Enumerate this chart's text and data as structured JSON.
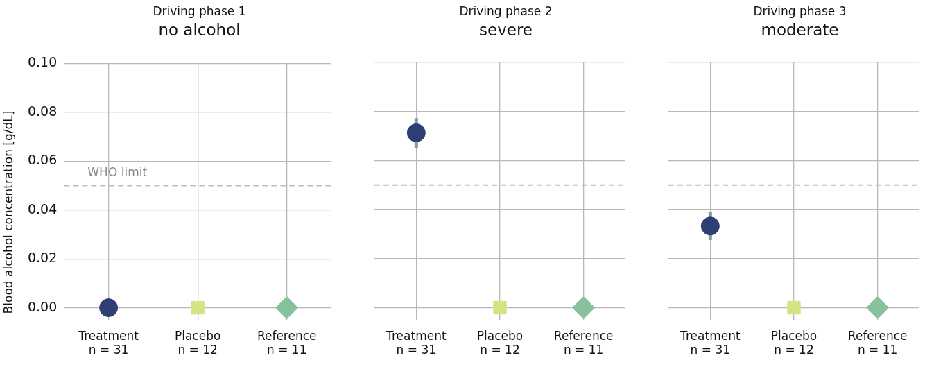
{
  "chart_data": [
    {
      "type": "scatter",
      "subtitle": "Driving phase 1",
      "title": "no alcohol",
      "ylabel": "Blood alcohol concentration [g/dL]",
      "categories": [
        "Treatment\nn = 31",
        "Placebo\nn = 12",
        "Reference\nn = 11"
      ],
      "ylim": [
        -0.005,
        0.1
      ],
      "yticks": [
        {
          "value": 0,
          "label": "0.00"
        },
        {
          "value": 0.02,
          "label": "0.02"
        },
        {
          "value": 0.04,
          "label": "0.04"
        },
        {
          "value": 0.06,
          "label": "0.06"
        },
        {
          "value": 0.08,
          "label": "0.08"
        },
        {
          "value": 0.1,
          "label": "0.10"
        }
      ],
      "grid": true,
      "legend": false,
      "series": [
        {
          "x": [
            "Treatment\nn = 31"
          ],
          "values": [
            0
          ],
          "color": "#2e3f73",
          "marker": "circle"
        },
        {
          "x": [
            "Placebo\nn = 12"
          ],
          "values": [
            0
          ],
          "color": "#d4e384",
          "marker": "square"
        },
        {
          "x": [
            "Reference\nn = 11"
          ],
          "values": [
            0
          ],
          "color": "#88c29c",
          "marker": "diamond"
        }
      ],
      "ref_lines": [
        {
          "axis": "y",
          "value": 0.05,
          "label": "WHO limit",
          "color": "#bdbdbd",
          "line_style": "dashed"
        }
      ]
    },
    {
      "type": "scatter",
      "subtitle": "Driving phase 2",
      "title": "severe",
      "categories": [
        "Treatment\nn = 31",
        "Placebo\nn = 12",
        "Reference\nn = 11"
      ],
      "ylim": [
        -0.005,
        0.1
      ],
      "yticks": [
        0,
        0.02,
        0.04,
        0.06,
        0.08,
        0.1
      ],
      "grid": true,
      "legend": false,
      "tick_labels": "x",
      "series": [
        {
          "x": [
            "Treatment\nn = 31"
          ],
          "values": [
            0.0713
          ],
          "errors": [
            [
              0.0652,
              0.0773
            ]
          ],
          "color": "#2e3f73",
          "marker": "circle"
        },
        {
          "x": [
            "Placebo\nn = 12"
          ],
          "values": [
            0
          ],
          "color": "#d4e384",
          "marker": "square"
        },
        {
          "x": [
            "Reference\nn = 11"
          ],
          "values": [
            0
          ],
          "color": "#88c29c",
          "marker": "diamond"
        }
      ],
      "ref_lines": [
        {
          "axis": "y",
          "value": 0.05,
          "color": "#bdbdbd",
          "line_style": "dashed"
        }
      ]
    },
    {
      "type": "scatter",
      "subtitle": "Driving phase 3",
      "title": "moderate",
      "categories": [
        "Treatment\nn = 31",
        "Placebo\nn = 12",
        "Reference\nn = 11"
      ],
      "ylim": [
        -0.005,
        0.1
      ],
      "yticks": [
        0,
        0.02,
        0.04,
        0.06,
        0.08,
        0.1
      ],
      "grid": true,
      "legend": false,
      "tick_labels": "x",
      "series": [
        {
          "x": [
            "Treatment\nn = 31"
          ],
          "values": [
            0.0333
          ],
          "errors": [
            [
              0.0276,
              0.0391
            ]
          ],
          "color": "#2e3f73",
          "marker": "circle"
        },
        {
          "x": [
            "Placebo\nn = 12"
          ],
          "values": [
            0
          ],
          "color": "#d4e384",
          "marker": "square"
        },
        {
          "x": [
            "Reference\nn = 11"
          ],
          "values": [
            0
          ],
          "color": "#88c29c",
          "marker": "diamond"
        }
      ],
      "ref_lines": [
        {
          "axis": "y",
          "value": 0.05,
          "color": "#bdbdbd",
          "line_style": "dashed"
        }
      ]
    }
  ]
}
